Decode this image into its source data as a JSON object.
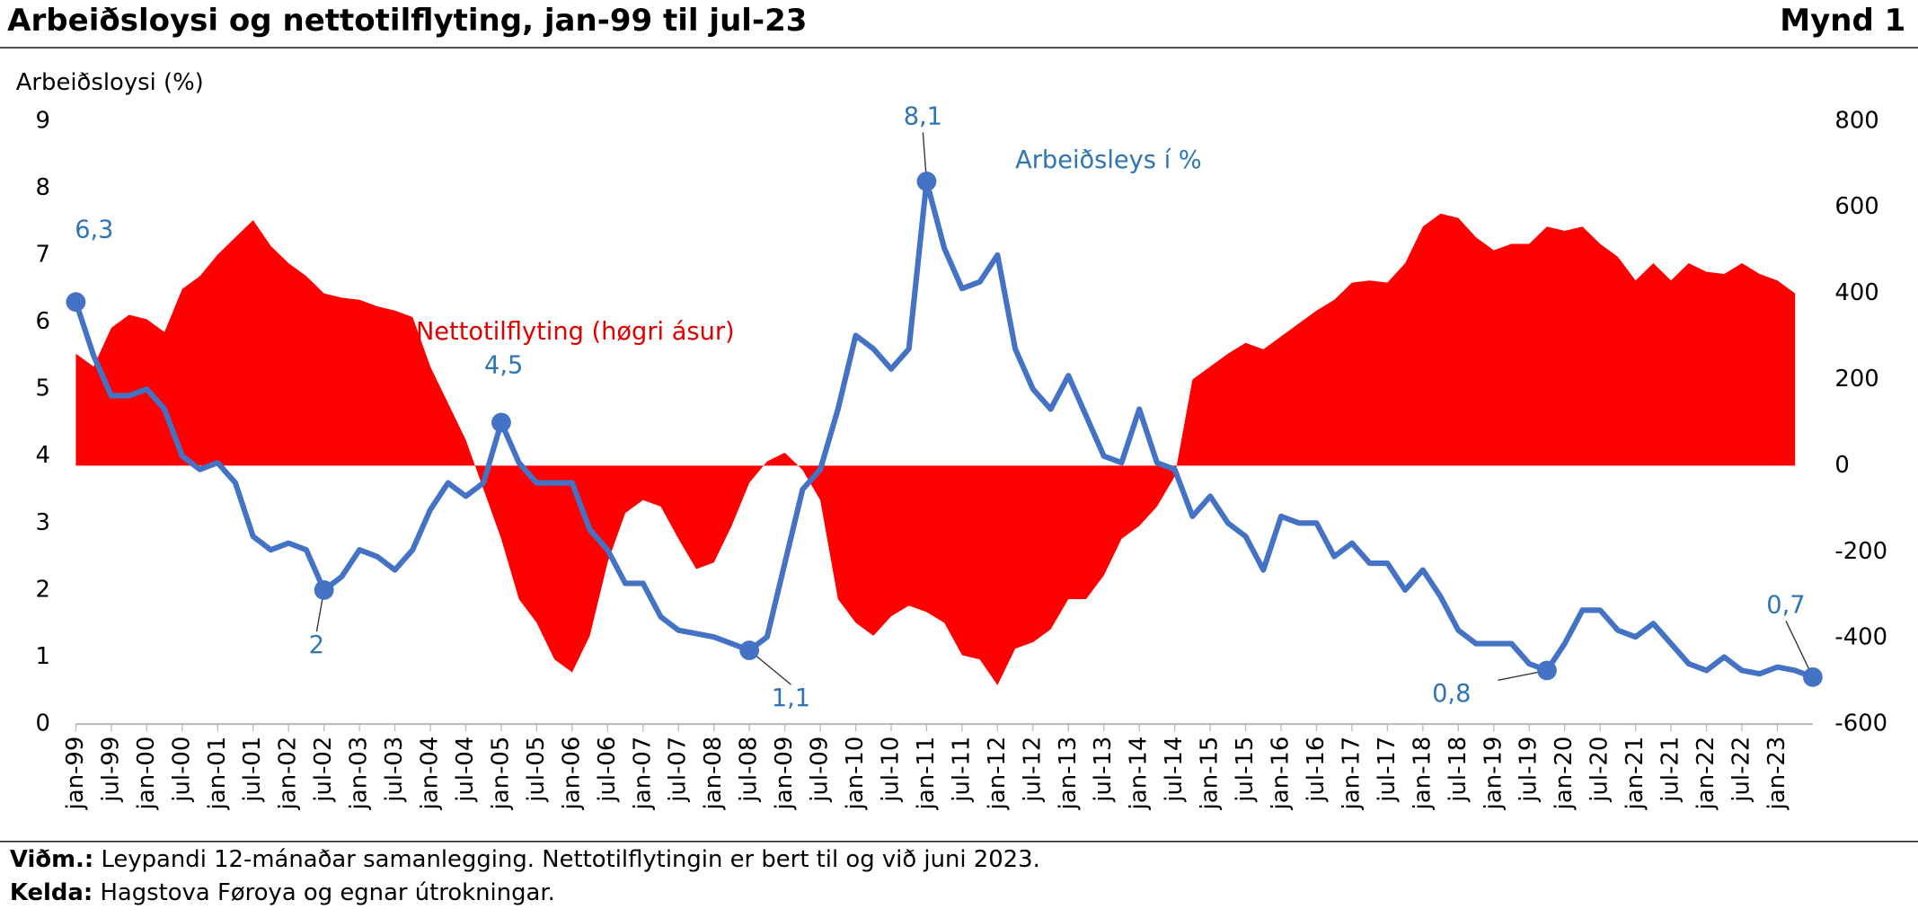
{
  "chart_data": {
    "type": "line",
    "title": "Arbeiðsloysi og nettotilflyting, jan-99 til jul-23",
    "figure_label": "Mynd 1",
    "ylabel": "Arbeiðsloysi (%)",
    "categories": [
      "jan-99",
      null,
      "jul-99",
      null,
      "jan-00",
      null,
      "jul-00",
      null,
      "jan-01",
      null,
      "jul-01",
      null,
      "jan-02",
      null,
      "jul-02",
      null,
      "jan-03",
      null,
      "jul-03",
      null,
      "jan-04",
      null,
      "jul-04",
      null,
      "jan-05",
      null,
      "jul-05",
      null,
      "jan-06",
      null,
      "jul-06",
      null,
      "jan-07",
      null,
      "jul-07",
      null,
      "jan-08",
      null,
      "jul-08",
      null,
      "jan-09",
      null,
      "jul-09",
      null,
      "jan-10",
      null,
      "jul-10",
      null,
      "jan-11",
      null,
      "jul-11",
      null,
      "jan-12",
      null,
      "jul-12",
      null,
      "jan-13",
      null,
      "jul-13",
      null,
      "jan-14",
      null,
      "jul-14",
      null,
      "jan-15",
      null,
      "jul-15",
      null,
      "jan-16",
      null,
      "jul-16",
      null,
      "jan-17",
      null,
      "jul-17",
      null,
      "jan-18",
      null,
      "jul-18",
      null,
      "jan-19",
      null,
      "jul-19",
      null,
      "jan-20",
      null,
      "jul-20",
      null,
      "jan-21",
      null,
      "jul-21",
      null,
      "jan-22",
      null,
      "jul-22",
      null,
      "jan-23",
      null,
      null
    ],
    "series": [
      {
        "name": "Arbeiðsleys í %",
        "type": "line",
        "color": "#4472c4",
        "values": [
          6.3,
          5.5,
          4.9,
          4.9,
          5.0,
          4.7,
          4.0,
          3.8,
          3.9,
          3.6,
          2.8,
          2.6,
          2.7,
          2.6,
          2,
          2.2,
          2.6,
          2.5,
          2.3,
          2.6,
          3.2,
          3.6,
          3.4,
          3.6,
          4.5,
          3.9,
          3.6,
          3.6,
          3.6,
          2.9,
          2.6,
          2.1,
          2.1,
          1.6,
          1.4,
          1.35,
          1.3,
          1.2,
          1.1,
          1.3,
          2.4,
          3.5,
          3.8,
          4.7,
          5.8,
          5.6,
          5.3,
          5.6,
          8.1,
          7.1,
          6.5,
          6.6,
          7.0,
          5.6,
          5.0,
          4.7,
          5.2,
          4.6,
          4.0,
          3.9,
          4.7,
          3.9,
          3.8,
          3.1,
          3.4,
          3.0,
          2.8,
          2.3,
          3.1,
          3.0,
          3.0,
          2.5,
          2.7,
          2.4,
          2.4,
          2.0,
          2.3,
          1.9,
          1.4,
          1.2,
          1.2,
          1.2,
          0.9,
          0.8,
          1.2,
          1.7,
          1.7,
          1.4,
          1.3,
          1.5,
          1.2,
          0.9,
          0.8,
          1.0,
          0.8,
          0.75,
          0.85,
          0.8,
          0.7
        ],
        "value_labels": [
          "6,3",
          null,
          null,
          null,
          null,
          null,
          null,
          null,
          null,
          null,
          null,
          null,
          null,
          null,
          "2",
          null,
          null,
          null,
          null,
          null,
          null,
          null,
          null,
          null,
          "4,5",
          null,
          null,
          null,
          null,
          null,
          null,
          null,
          null,
          null,
          null,
          null,
          null,
          null,
          "1,1",
          null,
          null,
          null,
          null,
          null,
          null,
          null,
          null,
          null,
          "8,1",
          null,
          null,
          null,
          null,
          null,
          null,
          null,
          null,
          null,
          null,
          null,
          null,
          null,
          null,
          null,
          null,
          null,
          null,
          null,
          null,
          null,
          null,
          null,
          null,
          null,
          null,
          null,
          null,
          null,
          null,
          null,
          null,
          null,
          null,
          "0,8",
          null,
          null,
          null,
          null,
          null,
          null,
          null,
          null,
          null,
          null,
          null,
          null,
          null,
          null,
          "0,7"
        ]
      },
      {
        "name": "Nettotilflyting (høgri ásur)",
        "type": "area",
        "axis": "y2",
        "color": "#ff0000",
        "values": [
          260,
          230,
          320,
          350,
          340,
          310,
          410,
          440,
          490,
          530,
          570,
          510,
          470,
          440,
          400,
          390,
          385,
          370,
          360,
          345,
          230,
          145,
          60,
          -55,
          -170,
          -310,
          -365,
          -450,
          -480,
          -395,
          -225,
          -110,
          -80,
          -95,
          -170,
          -240,
          -225,
          -140,
          -40,
          10,
          30,
          -10,
          -80,
          -310,
          -365,
          -395,
          -350,
          -325,
          -340,
          -365,
          -440,
          -450,
          -510,
          -425,
          -410,
          -380,
          -310,
          -310,
          -255,
          -170,
          -140,
          -95,
          -25,
          200,
          230,
          260,
          285,
          270,
          300,
          330,
          360,
          385,
          425,
          430,
          425,
          470,
          555,
          585,
          575,
          530,
          500,
          515,
          515,
          555,
          545,
          555,
          515,
          485,
          430,
          470,
          430,
          470,
          450,
          445,
          470,
          445,
          430,
          400,
          null
        ]
      }
    ],
    "ylim": [
      0,
      9
    ],
    "yticks": [
      0,
      1,
      2,
      3,
      4,
      5,
      6,
      7,
      8,
      9
    ],
    "y2lim": [
      -600,
      800
    ],
    "y2ticks": [
      -600,
      -400,
      -200,
      0,
      200,
      400,
      600,
      800
    ],
    "notes": [
      {
        "label": "Viðm.:",
        "text": "Leypandi 12-mánaðar samanlegging. Nettotilflytingin er bert til og við juni 2023."
      },
      {
        "label": "Kelda:",
        "text": "Hagstova Føroya og egnar útrokningar."
      }
    ]
  }
}
